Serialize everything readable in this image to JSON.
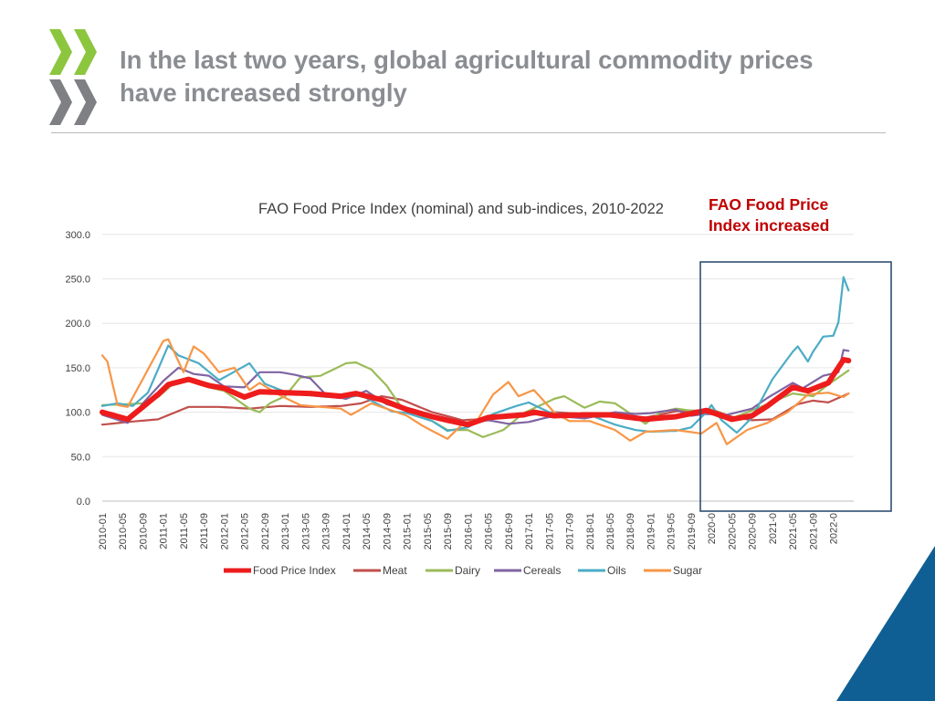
{
  "page": {
    "title": "In the last two years, global agricultural commodity prices have increased strongly",
    "callout": "FAO Food Price Index increased",
    "colors": {
      "title": "#8a8d91",
      "callout": "#c00000",
      "highlight_box": "#2f4f73",
      "logo_green": "#8cc63e",
      "logo_grey": "#7e8084",
      "corner_blue": "#0f5f95"
    }
  },
  "chart_data": {
    "type": "line",
    "title": "FAO Food Price Index (nominal) and sub-indices, 2010-2022",
    "ylim": [
      0,
      300
    ],
    "yticks": [
      "0.0",
      "50.0",
      "100.0",
      "150.0",
      "200.0",
      "250.0",
      "300.0"
    ],
    "grid": true,
    "legend_position": "bottom",
    "x_start": "2010-01",
    "x_end": "2022-04",
    "xtick_labels": [
      "2010-01",
      "2010-05",
      "2010-09",
      "2011-01",
      "2011-05",
      "2011-09",
      "2012-01",
      "2012-05",
      "2012-09",
      "2013-01",
      "2013-05",
      "2013-09",
      "2014-01",
      "2014-05",
      "2014-09",
      "2015-01",
      "2015-05",
      "2015-09",
      "2016-01",
      "2016-05",
      "2016-09",
      "2017-01",
      "2017-05",
      "2017-09",
      "2018-01",
      "2018-05",
      "2018-09",
      "2019-01",
      "2019-05",
      "2019-09",
      "2020-0",
      "2020-05",
      "2020-09",
      "2021-0",
      "2021-05",
      "2021-09",
      "2022-0"
    ],
    "highlight_period": {
      "from": "2020-01",
      "to": "2022-04"
    },
    "series": [
      {
        "name": "Food Price Index",
        "color": "#ee1c1c",
        "width": 6,
        "knots": [
          [
            "2010-01",
            100
          ],
          [
            "2010-06",
            92
          ],
          [
            "2010-12",
            120
          ],
          [
            "2011-02",
            131
          ],
          [
            "2011-06",
            137
          ],
          [
            "2011-10",
            130
          ],
          [
            "2012-01",
            127
          ],
          [
            "2012-05",
            117
          ],
          [
            "2012-08",
            123
          ],
          [
            "2013-01",
            122
          ],
          [
            "2013-06",
            121
          ],
          [
            "2013-12",
            118
          ],
          [
            "2014-03",
            121
          ],
          [
            "2014-08",
            114
          ],
          [
            "2015-01",
            103
          ],
          [
            "2015-06",
            95
          ],
          [
            "2015-09",
            91
          ],
          [
            "2016-01",
            86
          ],
          [
            "2016-05",
            94
          ],
          [
            "2016-12",
            97
          ],
          [
            "2017-02",
            100
          ],
          [
            "2017-06",
            96
          ],
          [
            "2017-12",
            97
          ],
          [
            "2018-05",
            97
          ],
          [
            "2018-12",
            92
          ],
          [
            "2019-06",
            95
          ],
          [
            "2019-12",
            102
          ],
          [
            "2020-05",
            92
          ],
          [
            "2020-09",
            96
          ],
          [
            "2020-12",
            107
          ],
          [
            "2021-05",
            128
          ],
          [
            "2021-08",
            124
          ],
          [
            "2021-12",
            133
          ],
          [
            "2022-03",
            159
          ],
          [
            "2022-04",
            158
          ]
        ]
      },
      {
        "name": "Meat",
        "color": "#c0504d",
        "width": 2.2,
        "knots": [
          [
            "2010-01",
            86
          ],
          [
            "2010-06",
            89
          ],
          [
            "2010-12",
            92
          ],
          [
            "2011-06",
            106
          ],
          [
            "2011-12",
            106
          ],
          [
            "2012-06",
            104
          ],
          [
            "2012-12",
            107
          ],
          [
            "2013-06",
            106
          ],
          [
            "2013-12",
            107
          ],
          [
            "2014-04",
            110
          ],
          [
            "2014-08",
            118
          ],
          [
            "2014-12",
            114
          ],
          [
            "2015-06",
            100
          ],
          [
            "2015-12",
            91
          ],
          [
            "2016-06",
            93
          ],
          [
            "2016-12",
            96
          ],
          [
            "2017-06",
            100
          ],
          [
            "2017-12",
            98
          ],
          [
            "2018-06",
            98
          ],
          [
            "2018-12",
            94
          ],
          [
            "2019-06",
            101
          ],
          [
            "2019-10",
            102
          ],
          [
            "2020-01",
            103
          ],
          [
            "2020-05",
            95
          ],
          [
            "2020-09",
            91
          ],
          [
            "2021-01",
            92
          ],
          [
            "2021-06",
            109
          ],
          [
            "2021-09",
            113
          ],
          [
            "2021-12",
            111
          ],
          [
            "2022-04",
            121
          ]
        ]
      },
      {
        "name": "Dairy",
        "color": "#9bbb59",
        "width": 2.2,
        "knots": [
          [
            "2010-01",
            108
          ],
          [
            "2010-06",
            109
          ],
          [
            "2010-09",
            110
          ],
          [
            "2010-12",
            117
          ],
          [
            "2011-03",
            132
          ],
          [
            "2011-06",
            135
          ],
          [
            "2011-10",
            128
          ],
          [
            "2012-01",
            124
          ],
          [
            "2012-06",
            104
          ],
          [
            "2012-08",
            100
          ],
          [
            "2012-10",
            110
          ],
          [
            "2013-01",
            118
          ],
          [
            "2013-04",
            139
          ],
          [
            "2013-08",
            141
          ],
          [
            "2014-01",
            155
          ],
          [
            "2014-03",
            156
          ],
          [
            "2014-06",
            148
          ],
          [
            "2014-09",
            130
          ],
          [
            "2014-12",
            105
          ],
          [
            "2015-03",
            98
          ],
          [
            "2015-06",
            90
          ],
          [
            "2015-09",
            80
          ],
          [
            "2016-01",
            80
          ],
          [
            "2016-04",
            72
          ],
          [
            "2016-08",
            80
          ],
          [
            "2016-12",
            99
          ],
          [
            "2017-03",
            107
          ],
          [
            "2017-06",
            115
          ],
          [
            "2017-08",
            118
          ],
          [
            "2017-12",
            105
          ],
          [
            "2018-03",
            112
          ],
          [
            "2018-06",
            110
          ],
          [
            "2018-12",
            87
          ],
          [
            "2019-03",
            100
          ],
          [
            "2019-06",
            104
          ],
          [
            "2019-10",
            101
          ],
          [
            "2020-01",
            103
          ],
          [
            "2020-05",
            93
          ],
          [
            "2020-09",
            102
          ],
          [
            "2020-12",
            109
          ],
          [
            "2021-05",
            121
          ],
          [
            "2021-09",
            118
          ],
          [
            "2021-12",
            131
          ],
          [
            "2022-04",
            147
          ]
        ]
      },
      {
        "name": "Cereals",
        "color": "#8064a2",
        "width": 2.2,
        "knots": [
          [
            "2010-01",
            97
          ],
          [
            "2010-06",
            88
          ],
          [
            "2010-09",
            110
          ],
          [
            "2011-01",
            135
          ],
          [
            "2011-04",
            150
          ],
          [
            "2011-07",
            143
          ],
          [
            "2011-10",
            141
          ],
          [
            "2012-01",
            129
          ],
          [
            "2012-05",
            128
          ],
          [
            "2012-08",
            145
          ],
          [
            "2012-12",
            145
          ],
          [
            "2013-03",
            142
          ],
          [
            "2013-06",
            138
          ],
          [
            "2013-09",
            120
          ],
          [
            "2014-01",
            115
          ],
          [
            "2014-05",
            124
          ],
          [
            "2014-09",
            109
          ],
          [
            "2015-01",
            103
          ],
          [
            "2015-06",
            95
          ],
          [
            "2015-09",
            93
          ],
          [
            "2016-01",
            87
          ],
          [
            "2016-05",
            91
          ],
          [
            "2016-09",
            87
          ],
          [
            "2017-01",
            89
          ],
          [
            "2017-06",
            96
          ],
          [
            "2017-12",
            93
          ],
          [
            "2018-06",
            100
          ],
          [
            "2018-10",
            98
          ],
          [
            "2019-01",
            99
          ],
          [
            "2019-06",
            103
          ],
          [
            "2019-09",
            96
          ],
          [
            "2019-12",
            98
          ],
          [
            "2020-04",
            97
          ],
          [
            "2020-09",
            104
          ],
          [
            "2020-12",
            116
          ],
          [
            "2021-05",
            133
          ],
          [
            "2021-07",
            127
          ],
          [
            "2021-11",
            141
          ],
          [
            "2022-02",
            145
          ],
          [
            "2022-03",
            170
          ],
          [
            "2022-04",
            169
          ]
        ]
      },
      {
        "name": "Oils",
        "color": "#4bacc6",
        "width": 2.2,
        "knots": [
          [
            "2010-01",
            107
          ],
          [
            "2010-04",
            110
          ],
          [
            "2010-07",
            107
          ],
          [
            "2010-10",
            122
          ],
          [
            "2011-02",
            175
          ],
          [
            "2011-04",
            164
          ],
          [
            "2011-08",
            155
          ],
          [
            "2011-12",
            136
          ],
          [
            "2012-06",
            155
          ],
          [
            "2012-09",
            132
          ],
          [
            "2013-01",
            123
          ],
          [
            "2013-06",
            119
          ],
          [
            "2013-12",
            116
          ],
          [
            "2014-04",
            119
          ],
          [
            "2014-10",
            101
          ],
          [
            "2015-01",
            99
          ],
          [
            "2015-06",
            90
          ],
          [
            "2015-09",
            79
          ],
          [
            "2016-01",
            83
          ],
          [
            "2016-06",
            98
          ],
          [
            "2016-10",
            106
          ],
          [
            "2017-01",
            111
          ],
          [
            "2017-05",
            100
          ],
          [
            "2017-08",
            98
          ],
          [
            "2018-01",
            97
          ],
          [
            "2018-06",
            86
          ],
          [
            "2018-10",
            80
          ],
          [
            "2019-01",
            78
          ],
          [
            "2019-06",
            79
          ],
          [
            "2019-09",
            83
          ],
          [
            "2019-12",
            100
          ],
          [
            "2020-01",
            108
          ],
          [
            "2020-03",
            91
          ],
          [
            "2020-06",
            77
          ],
          [
            "2020-09",
            94
          ],
          [
            "2021-01",
            137
          ],
          [
            "2021-05",
            168
          ],
          [
            "2021-06",
            174
          ],
          [
            "2021-08",
            157
          ],
          [
            "2021-09",
            168
          ],
          [
            "2021-11",
            185
          ],
          [
            "2022-01",
            186
          ],
          [
            "2022-02",
            201
          ],
          [
            "2022-03",
            252
          ],
          [
            "2022-04",
            237
          ]
        ]
      },
      {
        "name": "Sugar",
        "color": "#f79646",
        "width": 2.2,
        "knots": [
          [
            "2010-01",
            164
          ],
          [
            "2010-02",
            157
          ],
          [
            "2010-04",
            108
          ],
          [
            "2010-06",
            106
          ],
          [
            "2010-10",
            148
          ],
          [
            "2011-01",
            180
          ],
          [
            "2011-02",
            182
          ],
          [
            "2011-05",
            145
          ],
          [
            "2011-07",
            174
          ],
          [
            "2011-09",
            166
          ],
          [
            "2011-12",
            145
          ],
          [
            "2012-03",
            150
          ],
          [
            "2012-06",
            125
          ],
          [
            "2012-08",
            133
          ],
          [
            "2012-12",
            119
          ],
          [
            "2013-04",
            108
          ],
          [
            "2013-12",
            104
          ],
          [
            "2014-02",
            97
          ],
          [
            "2014-06",
            110
          ],
          [
            "2014-11",
            100
          ],
          [
            "2015-01",
            96
          ],
          [
            "2015-04",
            85
          ],
          [
            "2015-09",
            70
          ],
          [
            "2015-12",
            87
          ],
          [
            "2016-03",
            92
          ],
          [
            "2016-06",
            120
          ],
          [
            "2016-09",
            134
          ],
          [
            "2016-11",
            118
          ],
          [
            "2017-02",
            125
          ],
          [
            "2017-06",
            100
          ],
          [
            "2017-09",
            90
          ],
          [
            "2018-01",
            90
          ],
          [
            "2018-06",
            80
          ],
          [
            "2018-09",
            68
          ],
          [
            "2018-12",
            78
          ],
          [
            "2019-06",
            80
          ],
          [
            "2019-11",
            76
          ],
          [
            "2020-02",
            88
          ],
          [
            "2020-04",
            64
          ],
          [
            "2020-08",
            80
          ],
          [
            "2020-12",
            88
          ],
          [
            "2021-04",
            100
          ],
          [
            "2021-08",
            120
          ],
          [
            "2021-12",
            122
          ],
          [
            "2022-03",
            117
          ],
          [
            "2022-04",
            121
          ]
        ]
      }
    ]
  }
}
